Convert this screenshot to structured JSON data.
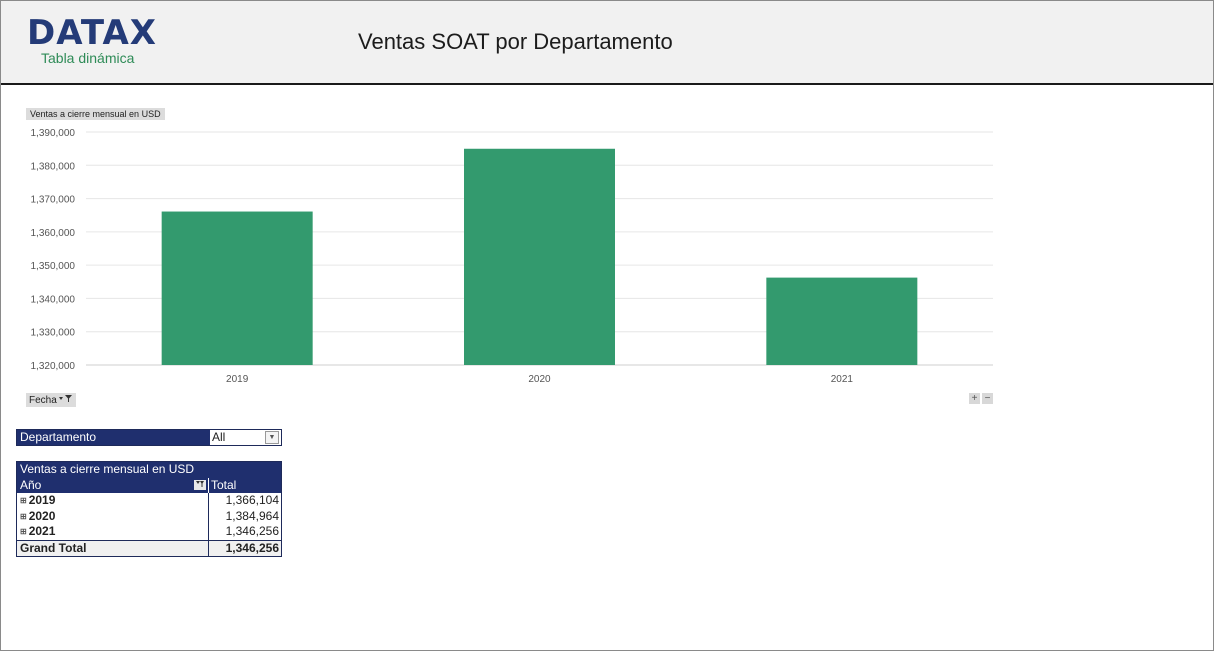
{
  "header": {
    "logo_text": "DATAX",
    "logo_sub": "Tabla dinámica",
    "title": "Ventas SOAT por Departamento"
  },
  "chart": {
    "tag_label": "Ventas a cierre mensual en USD",
    "field_button": "Fecha",
    "zoom_in": "+",
    "zoom_out": "−"
  },
  "chart_data": {
    "type": "bar",
    "categories": [
      "2019",
      "2020",
      "2021"
    ],
    "values": [
      1366104,
      1384964,
      1346256
    ],
    "ylim": [
      1320000,
      1390000
    ],
    "yticks": [
      "1,390,000",
      "1,380,000",
      "1,370,000",
      "1,360,000",
      "1,350,000",
      "1,340,000",
      "1,330,000",
      "1,320,000"
    ],
    "ytick_values": [
      1390000,
      1380000,
      1370000,
      1360000,
      1350000,
      1340000,
      1330000,
      1320000
    ],
    "ylabel": "Ventas a cierre mensual en USD",
    "grid": true,
    "bar_color": "#339a6e"
  },
  "filter": {
    "label": "Departamento",
    "value": "All",
    "dropdown_icon": "▼"
  },
  "pivot": {
    "title": "Ventas a cierre mensual en USD",
    "row_header": "Año",
    "col_header": "Total",
    "sort_icon": "filter-sort-icon",
    "rows": [
      {
        "year": "2019",
        "total": "1,366,104"
      },
      {
        "year": "2020",
        "total": "1,384,964"
      },
      {
        "year": "2021",
        "total": "1,346,256"
      }
    ],
    "grand_total_label": "Grand Total",
    "grand_total_value": "1,346,256"
  },
  "colors": {
    "brand_navy": "#243b78",
    "brand_green": "#2e8b57",
    "header_bg": "#1f2f6e"
  }
}
